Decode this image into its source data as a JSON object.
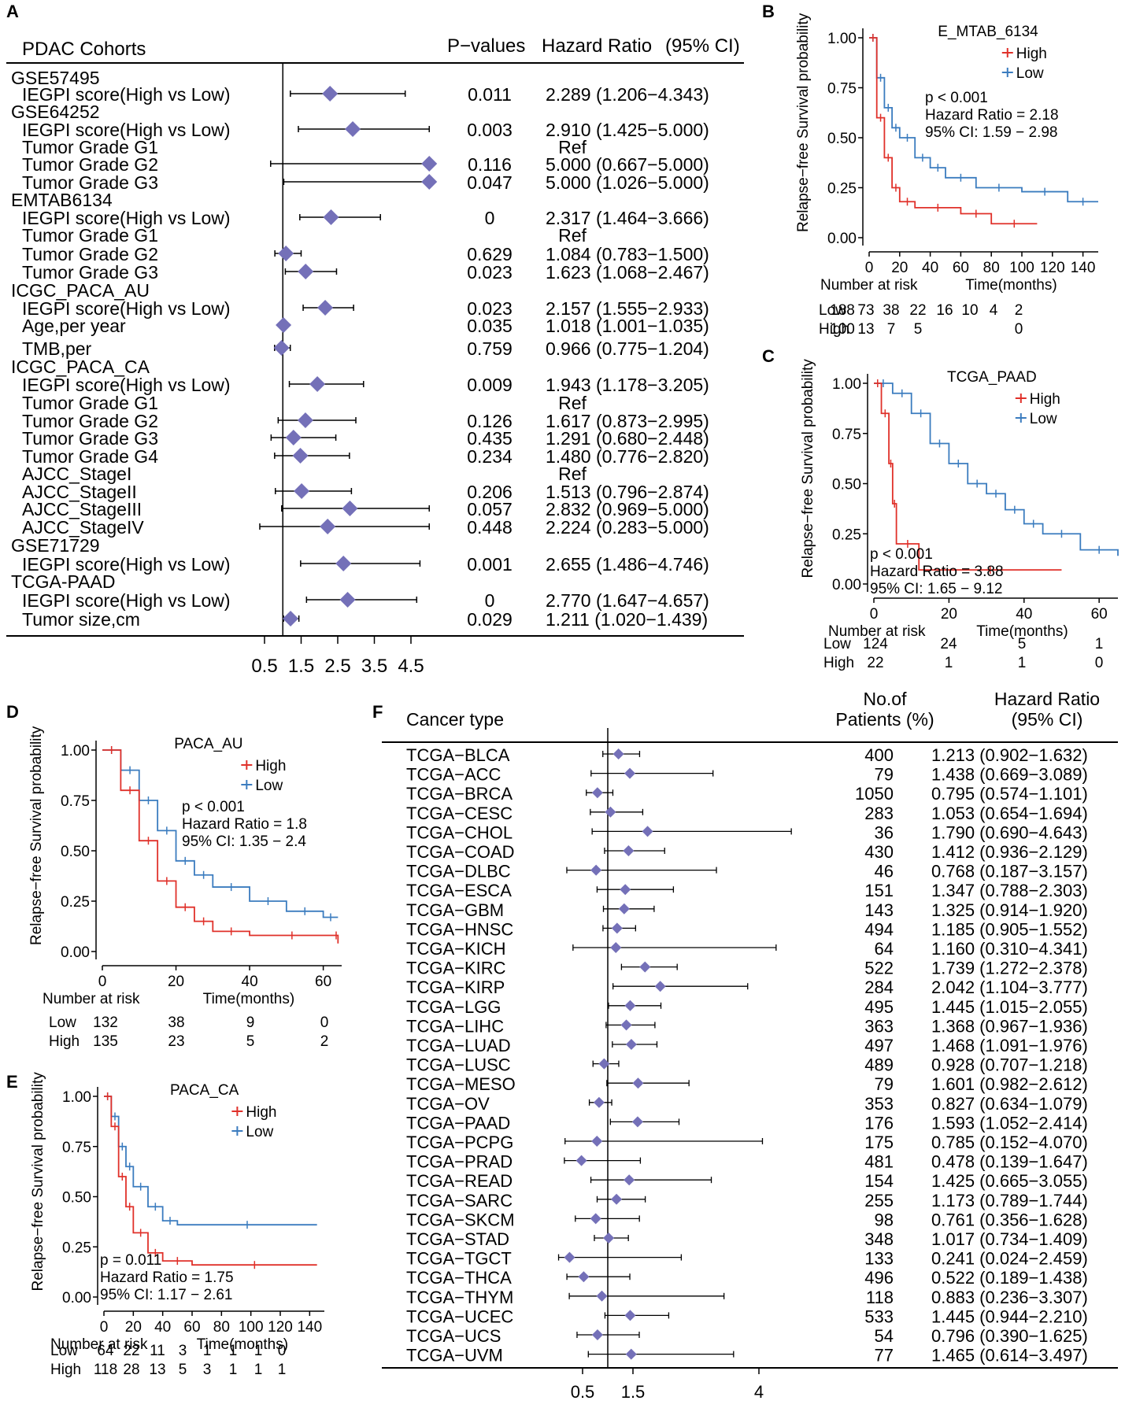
{
  "colors": {
    "high": "#e0312a",
    "low": "#3b7cbf",
    "diamond": "#7470b8",
    "axis": "#000000",
    "text": "#000000"
  },
  "chart_data": [
    {
      "panel": "A",
      "type": "forest",
      "headers": {
        "group": "PDAC Cohorts",
        "p": "P−values",
        "hr": "Hazard Ratio",
        "ci": "(95% CI)"
      },
      "xticks": [
        "0.5",
        "1.5",
        "2.5",
        "3.5",
        "4.5"
      ],
      "xtick_values": [
        0.5,
        1.5,
        2.5,
        3.5,
        4.5
      ],
      "xlim": [
        -0.2,
        5.5
      ],
      "ref": 1,
      "rows": [
        {
          "label": "GSE57495",
          "header": true
        },
        {
          "label": "IEGPI score(High vs Low)",
          "hr": 2.289,
          "lo": 1.206,
          "hi": 4.343,
          "p": "0.011",
          "text": "2.289 (1.206−4.343)"
        },
        {
          "label": "GSE64252",
          "header": true
        },
        {
          "label": "IEGPI score(High vs Low)",
          "hr": 2.91,
          "lo": 1.425,
          "hi": 5.0,
          "p": "0.003",
          "text": "2.910 (1.425−5.000)"
        },
        {
          "label": "Tumor Grade G1",
          "p": "",
          "text": "Ref"
        },
        {
          "label": "Tumor Grade G2",
          "hr": 5.0,
          "lo": 0.667,
          "hi": 5.0,
          "p": "0.116",
          "text": "5.000 (0.667−5.000)"
        },
        {
          "label": "Tumor Grade G3",
          "hr": 5.0,
          "lo": 1.026,
          "hi": 5.0,
          "p": "0.047",
          "text": "5.000 (1.026−5.000)"
        },
        {
          "label": "EMTAB6134",
          "header": true
        },
        {
          "label": "IEGPI score(High vs Low)",
          "hr": 2.317,
          "lo": 1.464,
          "hi": 3.666,
          "p": "0",
          "text": "2.317 (1.464−3.666)"
        },
        {
          "label": "Tumor Grade G1",
          "p": "",
          "text": "Ref"
        },
        {
          "label": "Tumor Grade G2",
          "hr": 1.084,
          "lo": 0.783,
          "hi": 1.5,
          "p": "0.629",
          "text": "1.084 (0.783−1.500)"
        },
        {
          "label": "Tumor Grade G3",
          "hr": 1.623,
          "lo": 1.068,
          "hi": 2.467,
          "p": "0.023",
          "text": "1.623 (1.068−2.467)"
        },
        {
          "label": "ICGC_PACA_AU",
          "header": true
        },
        {
          "label": "IEGPI score(High vs Low)",
          "hr": 2.157,
          "lo": 1.555,
          "hi": 2.933,
          "p": "0.023",
          "text": "2.157 (1.555−2.933)"
        },
        {
          "label": "Age,per year",
          "hr": 1.018,
          "lo": 1.001,
          "hi": 1.035,
          "p": "0.035",
          "text": "1.018 (1.001−1.035)"
        },
        {
          "label": "TMB,per",
          "hr": 0.966,
          "lo": 0.775,
          "hi": 1.204,
          "p": "0.759",
          "text": "0.966 (0.775−1.204)"
        },
        {
          "label": "ICGC_PACA_CA",
          "header": true
        },
        {
          "label": "IEGPI score(High vs Low)",
          "hr": 1.943,
          "lo": 1.178,
          "hi": 3.205,
          "p": "0.009",
          "text": "1.943 (1.178−3.205)"
        },
        {
          "label": "Tumor Grade G1",
          "p": "",
          "text": "Ref"
        },
        {
          "label": "Tumor Grade G2",
          "hr": 1.617,
          "lo": 0.873,
          "hi": 2.995,
          "p": "0.126",
          "text": "1.617 (0.873−2.995)"
        },
        {
          "label": "Tumor Grade G3",
          "hr": 1.291,
          "lo": 0.68,
          "hi": 2.448,
          "p": "0.435",
          "text": "1.291 (0.680−2.448)"
        },
        {
          "label": "Tumor Grade G4",
          "hr": 1.48,
          "lo": 0.776,
          "hi": 2.82,
          "p": "0.234",
          "text": "1.480 (0.776−2.820)"
        },
        {
          "label": "AJCC_StageI",
          "p": "",
          "text": "Ref"
        },
        {
          "label": "AJCC_StageII",
          "hr": 1.513,
          "lo": 0.796,
          "hi": 2.874,
          "p": "0.206",
          "text": "1.513 (0.796−2.874)"
        },
        {
          "label": "AJCC_StageIII",
          "hr": 2.832,
          "lo": 0.969,
          "hi": 5.0,
          "p": "0.057",
          "text": "2.832 (0.969−5.000)"
        },
        {
          "label": "AJCC_StageIV",
          "hr": 2.224,
          "lo": 0.283,
          "hi": 5.0,
          "p": "0.448",
          "text": "2.224 (0.283−5.000)"
        },
        {
          "label": "GSE71729",
          "header": true
        },
        {
          "label": "IEGPI score(High vs Low)",
          "hr": 2.655,
          "lo": 1.486,
          "hi": 4.746,
          "p": "0.001",
          "text": "2.655 (1.486−4.746)"
        },
        {
          "label": "TCGA-PAAD",
          "header": true
        },
        {
          "label": "IEGPI score(High vs Low)",
          "hr": 2.77,
          "lo": 1.647,
          "hi": 4.657,
          "p": "0",
          "text": "2.770 (1.647−4.657)"
        },
        {
          "label": "Tumor size,cm",
          "hr": 1.211,
          "lo": 1.02,
          "hi": 1.439,
          "p": "0.029",
          "text": "1.211 (1.020−1.439)"
        }
      ]
    },
    {
      "panel": "B",
      "type": "km",
      "title": "E_MTAB_6134",
      "ylabel": "Relapse−free Survival probability",
      "xlabel": "Time(months)",
      "xlim": [
        0,
        150
      ],
      "xticks": [
        0,
        20,
        40,
        60,
        80,
        100,
        120,
        140
      ],
      "yticks": [
        "0.00",
        "0.25",
        "0.50",
        "0.75",
        "1.00"
      ],
      "legend": [
        "High",
        "Low"
      ],
      "stats": [
        "p < 0.001",
        "Hazard Ratio = 2.18",
        "95% CI: 1.59 − 2.98"
      ],
      "risk_title": "Number at risk",
      "risk": {
        "Low": [
          "188",
          "73",
          "38",
          "22",
          "16",
          "10",
          "4",
          "2"
        ],
        "High": [
          "100",
          "13",
          "7",
          "5",
          "",
          "",
          "",
          "0"
        ]
      },
      "high": [
        [
          0,
          1
        ],
        [
          5,
          0.6
        ],
        [
          10,
          0.4
        ],
        [
          15,
          0.25
        ],
        [
          20,
          0.18
        ],
        [
          30,
          0.15
        ],
        [
          60,
          0.12
        ],
        [
          80,
          0.07
        ],
        [
          110,
          0.07
        ]
      ],
      "low": [
        [
          0,
          1
        ],
        [
          5,
          0.8
        ],
        [
          10,
          0.65
        ],
        [
          15,
          0.55
        ],
        [
          20,
          0.5
        ],
        [
          30,
          0.4
        ],
        [
          40,
          0.35
        ],
        [
          50,
          0.3
        ],
        [
          70,
          0.25
        ],
        [
          100,
          0.23
        ],
        [
          130,
          0.18
        ],
        [
          150,
          0.18
        ]
      ]
    },
    {
      "panel": "C",
      "type": "km",
      "title": "TCGA_PAAD",
      "ylabel": "Relapse−free Survival probability",
      "xlabel": "Time(months)",
      "xlim": [
        0,
        65
      ],
      "xticks": [
        0,
        20,
        40,
        60
      ],
      "yticks": [
        "0.00",
        "0.25",
        "0.50",
        "0.75",
        "1.00"
      ],
      "legend": [
        "High",
        "Low"
      ],
      "stats": [
        "p < 0.001",
        "Hazard Ratio = 3.88",
        "95% CI: 1.65 − 9.12"
      ],
      "risk_title": "Number at risk",
      "risk": {
        "Low": [
          "124",
          "24",
          "5",
          "1"
        ],
        "High": [
          "22",
          "1",
          "1",
          "0"
        ]
      },
      "high": [
        [
          0,
          1
        ],
        [
          2,
          0.85
        ],
        [
          4,
          0.6
        ],
        [
          5,
          0.4
        ],
        [
          6,
          0.2
        ],
        [
          12,
          0.07
        ],
        [
          50,
          0.07
        ]
      ],
      "low": [
        [
          0,
          1
        ],
        [
          5,
          0.95
        ],
        [
          10,
          0.85
        ],
        [
          15,
          0.7
        ],
        [
          20,
          0.6
        ],
        [
          25,
          0.5
        ],
        [
          30,
          0.45
        ],
        [
          35,
          0.37
        ],
        [
          40,
          0.3
        ],
        [
          45,
          0.25
        ],
        [
          55,
          0.17
        ],
        [
          65,
          0.14
        ]
      ]
    },
    {
      "panel": "D",
      "type": "km",
      "title": "PACA_AU",
      "ylabel": "Relapse−free Survival probability",
      "xlabel": "Time(months)",
      "xlim": [
        0,
        65
      ],
      "xticks": [
        0,
        20,
        40,
        60
      ],
      "yticks": [
        "0.00",
        "0.25",
        "0.50",
        "0.75",
        "1.00"
      ],
      "legend": [
        "High",
        "Low"
      ],
      "stats": [
        "p < 0.001",
        "Hazard Ratio = 1.8",
        "95% CI: 1.35 − 2.4"
      ],
      "risk_title": "Number at risk",
      "risk": {
        "Low": [
          "132",
          "38",
          "9",
          "0"
        ],
        "High": [
          "135",
          "23",
          "5",
          "2"
        ]
      },
      "high": [
        [
          0,
          1
        ],
        [
          5,
          0.8
        ],
        [
          10,
          0.55
        ],
        [
          15,
          0.35
        ],
        [
          20,
          0.22
        ],
        [
          25,
          0.15
        ],
        [
          30,
          0.1
        ],
        [
          40,
          0.08
        ],
        [
          63,
          0.08
        ],
        [
          64,
          0.04
        ]
      ],
      "low": [
        [
          0,
          1
        ],
        [
          5,
          0.9
        ],
        [
          10,
          0.75
        ],
        [
          15,
          0.6
        ],
        [
          20,
          0.45
        ],
        [
          25,
          0.38
        ],
        [
          30,
          0.32
        ],
        [
          40,
          0.25
        ],
        [
          50,
          0.2
        ],
        [
          60,
          0.17
        ],
        [
          64,
          0.17
        ]
      ]
    },
    {
      "panel": "E",
      "type": "km",
      "title": "PACA_CA",
      "ylabel": "Relapse−free Survival probability",
      "xlabel": "Time(months)",
      "xlim": [
        0,
        150
      ],
      "xticks": [
        0,
        20,
        40,
        60,
        80,
        100,
        120,
        140
      ],
      "yticks": [
        "0.00",
        "0.25",
        "0.50",
        "0.75",
        "1.00"
      ],
      "legend": [
        "High",
        "Low"
      ],
      "stats": [
        "p = 0.011",
        "Hazard Ratio = 1.75",
        "95% CI: 1.17 − 2.61"
      ],
      "risk_title": "Number at risk",
      "risk": {
        "Low": [
          "64",
          "22",
          "11",
          "3",
          "1",
          "1",
          "1",
          "0"
        ],
        "High": [
          "118",
          "28",
          "13",
          "5",
          "3",
          "1",
          "1",
          "1"
        ]
      },
      "high": [
        [
          0,
          1
        ],
        [
          5,
          0.85
        ],
        [
          10,
          0.6
        ],
        [
          15,
          0.45
        ],
        [
          20,
          0.32
        ],
        [
          30,
          0.22
        ],
        [
          40,
          0.18
        ],
        [
          60,
          0.16
        ],
        [
          145,
          0.16
        ]
      ],
      "low": [
        [
          0,
          1
        ],
        [
          5,
          0.9
        ],
        [
          10,
          0.75
        ],
        [
          15,
          0.65
        ],
        [
          20,
          0.55
        ],
        [
          30,
          0.45
        ],
        [
          40,
          0.38
        ],
        [
          50,
          0.36
        ],
        [
          145,
          0.36
        ]
      ]
    },
    {
      "panel": "F",
      "type": "forest",
      "headers": {
        "group": "Cancer type",
        "n1": "No.of",
        "n2": "Patients (%)",
        "hr1": "Hazard Ratio",
        "hr2": "(95% CI)"
      },
      "xticks": [
        "0.5",
        "1.5",
        "4"
      ],
      "xtick_values": [
        0.5,
        1.5,
        4
      ],
      "ref": 1,
      "rows": [
        {
          "label": "TCGA−BLCA",
          "n": "400",
          "hr": 1.213,
          "lo": 0.902,
          "hi": 1.632,
          "text": "1.213 (0.902−1.632)"
        },
        {
          "label": "TCGA−ACC",
          "n": "79",
          "hr": 1.438,
          "lo": 0.669,
          "hi": 3.089,
          "text": "1.438 (0.669−3.089)"
        },
        {
          "label": "TCGA−BRCA",
          "n": "1050",
          "hr": 0.795,
          "lo": 0.574,
          "hi": 1.101,
          "text": "0.795 (0.574−1.101)"
        },
        {
          "label": "TCGA−CESC",
          "n": "283",
          "hr": 1.053,
          "lo": 0.654,
          "hi": 1.694,
          "text": "1.053 (0.654−1.694)"
        },
        {
          "label": "TCGA−CHOL",
          "n": "36",
          "hr": 1.79,
          "lo": 0.69,
          "hi": 4.643,
          "text": "1.790 (0.690−4.643)"
        },
        {
          "label": "TCGA−COAD",
          "n": "430",
          "hr": 1.412,
          "lo": 0.936,
          "hi": 2.129,
          "text": "1.412 (0.936−2.129)"
        },
        {
          "label": "TCGA−DLBC",
          "n": "46",
          "hr": 0.768,
          "lo": 0.187,
          "hi": 3.157,
          "text": "0.768 (0.187−3.157)"
        },
        {
          "label": "TCGA−ESCA",
          "n": "151",
          "hr": 1.347,
          "lo": 0.788,
          "hi": 2.303,
          "text": "1.347 (0.788−2.303)"
        },
        {
          "label": "TCGA−GBM",
          "n": "143",
          "hr": 1.325,
          "lo": 0.914,
          "hi": 1.92,
          "text": "1.325 (0.914−1.920)"
        },
        {
          "label": "TCGA−HNSC",
          "n": "494",
          "hr": 1.185,
          "lo": 0.905,
          "hi": 1.552,
          "text": "1.185 (0.905−1.552)"
        },
        {
          "label": "TCGA−KICH",
          "n": "64",
          "hr": 1.16,
          "lo": 0.31,
          "hi": 4.341,
          "text": "1.160 (0.310−4.341)"
        },
        {
          "label": "TCGA−KIRC",
          "n": "522",
          "hr": 1.739,
          "lo": 1.272,
          "hi": 2.378,
          "text": "1.739 (1.272−2.378)"
        },
        {
          "label": "TCGA−KIRP",
          "n": "284",
          "hr": 2.042,
          "lo": 1.104,
          "hi": 3.777,
          "text": "2.042 (1.104−3.777)"
        },
        {
          "label": "TCGA−LGG",
          "n": "495",
          "hr": 1.445,
          "lo": 1.015,
          "hi": 2.055,
          "text": "1.445 (1.015−2.055)"
        },
        {
          "label": "TCGA−LIHC",
          "n": "363",
          "hr": 1.368,
          "lo": 0.967,
          "hi": 1.936,
          "text": "1.368 (0.967−1.936)"
        },
        {
          "label": "TCGA−LUAD",
          "n": "497",
          "hr": 1.468,
          "lo": 1.091,
          "hi": 1.976,
          "text": "1.468 (1.091−1.976)"
        },
        {
          "label": "TCGA−LUSC",
          "n": "489",
          "hr": 0.928,
          "lo": 0.707,
          "hi": 1.218,
          "text": "0.928 (0.707−1.218)"
        },
        {
          "label": "TCGA−MESO",
          "n": "79",
          "hr": 1.601,
          "lo": 0.982,
          "hi": 2.612,
          "text": "1.601 (0.982−2.612)"
        },
        {
          "label": "TCGA−OV",
          "n": "353",
          "hr": 0.827,
          "lo": 0.634,
          "hi": 1.079,
          "text": "0.827 (0.634−1.079)"
        },
        {
          "label": "TCGA−PAAD",
          "n": "176",
          "hr": 1.593,
          "lo": 1.052,
          "hi": 2.414,
          "text": "1.593 (1.052−2.414)"
        },
        {
          "label": "TCGA−PCPG",
          "n": "175",
          "hr": 0.785,
          "lo": 0.152,
          "hi": 4.07,
          "text": "0.785 (0.152−4.070)"
        },
        {
          "label": "TCGA−PRAD",
          "n": "481",
          "hr": 0.478,
          "lo": 0.139,
          "hi": 1.647,
          "text": "0.478 (0.139−1.647)"
        },
        {
          "label": "TCGA−READ",
          "n": "154",
          "hr": 1.425,
          "lo": 0.665,
          "hi": 3.055,
          "text": "1.425 (0.665−3.055)"
        },
        {
          "label": "TCGA−SARC",
          "n": "255",
          "hr": 1.173,
          "lo": 0.789,
          "hi": 1.744,
          "text": "1.173 (0.789−1.744)"
        },
        {
          "label": "TCGA−SKCM",
          "n": "98",
          "hr": 0.761,
          "lo": 0.356,
          "hi": 1.628,
          "text": "0.761 (0.356−1.628)"
        },
        {
          "label": "TCGA−STAD",
          "n": "348",
          "hr": 1.017,
          "lo": 0.734,
          "hi": 1.409,
          "text": "1.017 (0.734−1.409)"
        },
        {
          "label": "TCGA−TGCT",
          "n": "133",
          "hr": 0.241,
          "lo": 0.024,
          "hi": 2.459,
          "text": "0.241 (0.024−2.459)"
        },
        {
          "label": "TCGA−THCA",
          "n": "496",
          "hr": 0.522,
          "lo": 0.189,
          "hi": 1.438,
          "text": "0.522 (0.189−1.438)"
        },
        {
          "label": "TCGA−THYM",
          "n": "118",
          "hr": 0.883,
          "lo": 0.236,
          "hi": 3.307,
          "text": "0.883 (0.236−3.307)"
        },
        {
          "label": "TCGA−UCEC",
          "n": "533",
          "hr": 1.445,
          "lo": 0.944,
          "hi": 2.21,
          "text": "1.445 (0.944−2.210)"
        },
        {
          "label": "TCGA−UCS",
          "n": "54",
          "hr": 0.796,
          "lo": 0.39,
          "hi": 1.625,
          "text": "0.796 (0.390−1.625)"
        },
        {
          "label": "TCGA−UVM",
          "n": "77",
          "hr": 1.465,
          "lo": 0.614,
          "hi": 3.497,
          "text": "1.465 (0.614−3.497)"
        }
      ]
    }
  ],
  "panel_labels": [
    "A",
    "B",
    "C",
    "D",
    "E",
    "F"
  ]
}
